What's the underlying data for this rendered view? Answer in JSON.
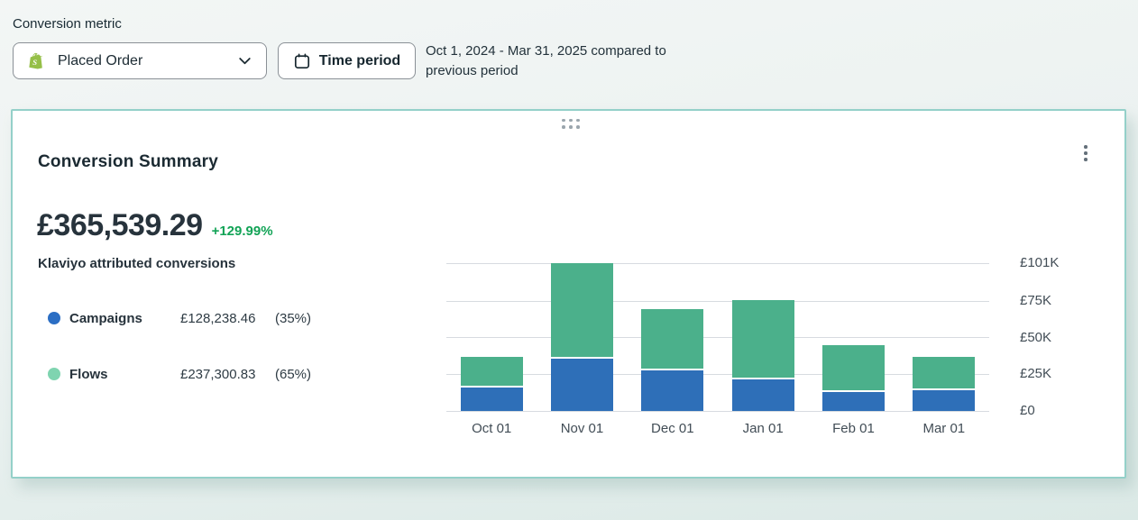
{
  "toolbar": {
    "metric_label": "Conversion metric",
    "metric_value": "Placed Order",
    "metric_icon": "shopify-icon",
    "time_period_label": "Time period",
    "time_period_icon": "calendar-icon",
    "date_range": "Oct 1, 2024 - Mar 31, 2025 compared to previous period"
  },
  "card": {
    "title": "Conversion Summary",
    "total_value": "£365,539.29",
    "delta": "+129.99%",
    "subtitle": "Klaviyo attributed conversions",
    "menu_icon": "kebab-menu-icon",
    "drag_icon": "drag-handle-icon",
    "legend": {
      "items": [
        {
          "label": "Campaigns",
          "value": "£128,238.46",
          "percent": "(35%)",
          "color": "#2b6ec4"
        },
        {
          "label": "Flows",
          "value": "£237,300.83",
          "percent": "(65%)",
          "color": "#7fd4b0"
        }
      ]
    }
  },
  "chart_data": {
    "type": "bar",
    "variant": "stacked",
    "unit": "thousand GBP (estimated from gridlines)",
    "categories": [
      "Oct 01",
      "Nov 01",
      "Dec 01",
      "Jan 01",
      "Feb 01",
      "Mar 01"
    ],
    "series": [
      {
        "name": "Campaigns",
        "color": "#2e6fb8",
        "values": [
          16.0,
          36.0,
          27.5,
          21.5,
          13.0,
          14.2
        ]
      },
      {
        "name": "Flows",
        "color": "#4bb08b",
        "values": [
          20.9,
          65.0,
          42.4,
          54.0,
          32.2,
          22.8
        ]
      }
    ],
    "totals": [
      36.9,
      101.0,
      69.9,
      75.5,
      45.2,
      37.0
    ],
    "title": "",
    "xlabel": "",
    "ylabel": "",
    "ylim": [
      0,
      101
    ],
    "yticks": [
      {
        "label": "£0",
        "value": 0
      },
      {
        "label": "£25K",
        "value": 25
      },
      {
        "label": "£50K",
        "value": 50
      },
      {
        "label": "£75K",
        "value": 75
      },
      {
        "label": "£101K",
        "value": 101
      }
    ],
    "grid": true,
    "legend_position": "left",
    "segment_gap_color": "#ffffff"
  },
  "colors": {
    "card_border": "#94d0c9",
    "delta_green": "#12a356",
    "gridline": "#d7dbe0",
    "axis_text": "#424d56",
    "shopify_green": "#95bf47"
  }
}
